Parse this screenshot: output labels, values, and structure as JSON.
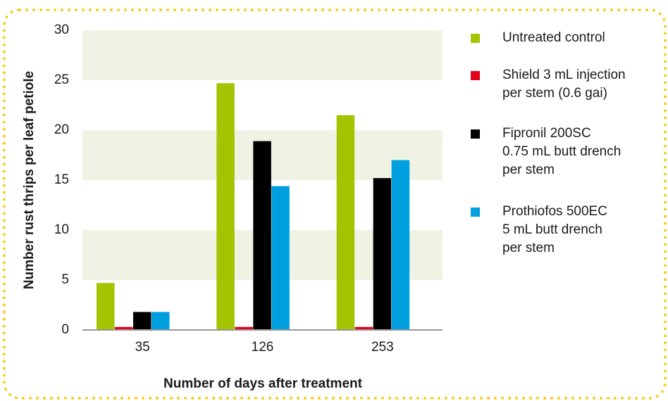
{
  "chart_data": {
    "type": "bar",
    "x_label": "Number of days after treatment",
    "y_label": "Number rust thrips per leaf petiole",
    "categories": [
      "35",
      "126",
      "253"
    ],
    "series": [
      {
        "name": "Untreated control",
        "color": "#a3c400",
        "values": [
          4.7,
          24.7,
          21.5
        ]
      },
      {
        "name": "Shield 3 mL injection\nper stem (0.6 gai)",
        "color": "#e3001b",
        "values": [
          0.3,
          0.3,
          0.3
        ]
      },
      {
        "name": "Fipronil 200SC\n0.75 mL butt drench\nper stem",
        "color": "#000000",
        "values": [
          1.8,
          18.9,
          15.2
        ]
      },
      {
        "name": "Prothiofos 500EC\n5 mL butt drench\nper stem",
        "color": "#009fe0",
        "values": [
          1.8,
          14.4,
          17.0
        ]
      }
    ],
    "ylim": [
      0,
      30
    ],
    "yticks": [
      0,
      5,
      10,
      15,
      20,
      25,
      30
    ],
    "grid": "bands",
    "legend": "right"
  }
}
